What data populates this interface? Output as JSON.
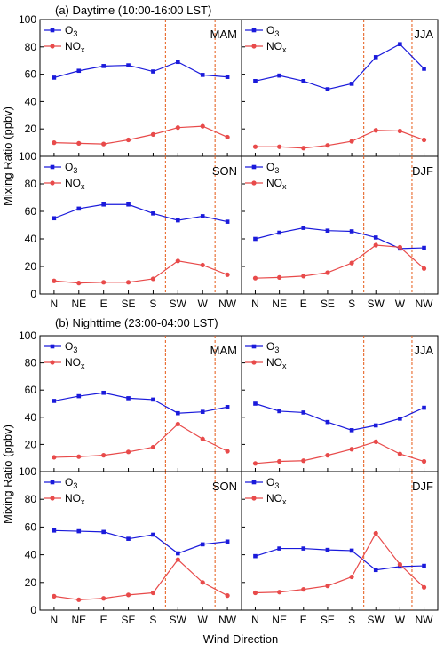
{
  "figure": {
    "section_a_title": "(a) Daytime (10:00-16:00 LST)",
    "section_b_title": "(b) Nighttime (23:00-04:00 LST)",
    "ylabel": "Mixing Ratio (ppbv)",
    "xlabel": "Wind Direction",
    "legend": {
      "o3": "O",
      "o3_sub": "3",
      "nox": "NO",
      "nox_sub": "x"
    },
    "colors": {
      "o3": "#1a1adb",
      "nox": "#e84a4a",
      "vline": "#e8682a"
    }
  },
  "chart_data": [
    {
      "type": "line",
      "section": "a",
      "season": "MAM",
      "categories": [
        "N",
        "NE",
        "E",
        "SE",
        "S",
        "SW",
        "W",
        "NW"
      ],
      "ylim": [
        0,
        100
      ],
      "yticks": [
        0,
        20,
        40,
        60,
        80,
        100
      ],
      "vlines": [
        "SW",
        "W"
      ],
      "series": [
        {
          "name": "O3",
          "values": [
            57.5,
            62.5,
            66,
            66.5,
            62,
            69,
            59.5,
            58
          ]
        },
        {
          "name": "NOx",
          "values": [
            10,
            9.5,
            9,
            12,
            16,
            21,
            22,
            14
          ]
        }
      ]
    },
    {
      "type": "line",
      "section": "a",
      "season": "JJA",
      "categories": [
        "N",
        "NE",
        "E",
        "SE",
        "S",
        "SW",
        "W",
        "NW"
      ],
      "ylim": [
        0,
        100
      ],
      "yticks": [
        0,
        20,
        40,
        60,
        80,
        100
      ],
      "vlines": [
        "SW",
        "W"
      ],
      "series": [
        {
          "name": "O3",
          "values": [
            55,
            59,
            55,
            49,
            53,
            72.5,
            82,
            64
          ]
        },
        {
          "name": "NOx",
          "values": [
            7,
            7,
            6,
            8,
            11,
            19,
            18.5,
            12
          ]
        }
      ]
    },
    {
      "type": "line",
      "section": "a",
      "season": "SON",
      "categories": [
        "N",
        "NE",
        "E",
        "SE",
        "S",
        "SW",
        "W",
        "NW"
      ],
      "ylim": [
        0,
        100
      ],
      "yticks": [
        0,
        20,
        40,
        60,
        80,
        100
      ],
      "vlines": [
        "SW",
        "W"
      ],
      "series": [
        {
          "name": "O3",
          "values": [
            55,
            62,
            65,
            65,
            58.5,
            53.5,
            56.5,
            52.5
          ]
        },
        {
          "name": "NOx",
          "values": [
            9.5,
            8,
            8.5,
            8.5,
            11,
            24,
            21,
            14
          ]
        }
      ]
    },
    {
      "type": "line",
      "section": "a",
      "season": "DJF",
      "categories": [
        "N",
        "NE",
        "E",
        "SE",
        "S",
        "SW",
        "W",
        "NW"
      ],
      "ylim": [
        0,
        100
      ],
      "yticks": [
        0,
        20,
        40,
        60,
        80,
        100
      ],
      "vlines": [
        "SW",
        "W"
      ],
      "series": [
        {
          "name": "O3",
          "values": [
            40,
            44.5,
            48,
            46,
            45.5,
            41,
            33,
            33.5
          ]
        },
        {
          "name": "NOx",
          "values": [
            11.5,
            12,
            13,
            15.5,
            22.5,
            35.5,
            34,
            18.5
          ]
        }
      ]
    },
    {
      "type": "line",
      "section": "b",
      "season": "MAM",
      "categories": [
        "N",
        "NE",
        "E",
        "SE",
        "S",
        "SW",
        "W",
        "NW"
      ],
      "ylim": [
        0,
        100
      ],
      "yticks": [
        0,
        20,
        40,
        60,
        80,
        100
      ],
      "vlines": [
        "SW",
        "W"
      ],
      "series": [
        {
          "name": "O3",
          "values": [
            52,
            55.5,
            58,
            54,
            53,
            43,
            44,
            47.5
          ]
        },
        {
          "name": "NOx",
          "values": [
            10.5,
            11,
            12,
            14.5,
            18,
            35,
            24,
            15
          ]
        }
      ]
    },
    {
      "type": "line",
      "section": "b",
      "season": "JJA",
      "categories": [
        "N",
        "NE",
        "E",
        "SE",
        "S",
        "SW",
        "W",
        "NW"
      ],
      "ylim": [
        0,
        100
      ],
      "yticks": [
        0,
        20,
        40,
        60,
        80,
        100
      ],
      "vlines": [
        "SW",
        "W"
      ],
      "series": [
        {
          "name": "O3",
          "values": [
            50,
            44.5,
            43.5,
            36.5,
            30.5,
            34,
            39,
            47
          ]
        },
        {
          "name": "NOx",
          "values": [
            6,
            7.5,
            8,
            12,
            16.5,
            22,
            13,
            7.5
          ]
        }
      ]
    },
    {
      "type": "line",
      "section": "b",
      "season": "SON",
      "categories": [
        "N",
        "NE",
        "E",
        "SE",
        "S",
        "SW",
        "W",
        "NW"
      ],
      "ylim": [
        0,
        100
      ],
      "yticks": [
        0,
        20,
        40,
        60,
        80,
        100
      ],
      "vlines": [
        "SW",
        "W"
      ],
      "series": [
        {
          "name": "O3",
          "values": [
            57.5,
            57,
            56.5,
            51.5,
            54.5,
            41,
            47.5,
            49.5
          ]
        },
        {
          "name": "NOx",
          "values": [
            10,
            7.5,
            8.5,
            11,
            12.5,
            36.5,
            20,
            10.5
          ]
        }
      ]
    },
    {
      "type": "line",
      "section": "b",
      "season": "DJF",
      "categories": [
        "N",
        "NE",
        "E",
        "SE",
        "S",
        "SW",
        "W",
        "NW"
      ],
      "ylim": [
        0,
        100
      ],
      "yticks": [
        0,
        20,
        40,
        60,
        80,
        100
      ],
      "vlines": [
        "SW",
        "W"
      ],
      "series": [
        {
          "name": "O3",
          "values": [
            39,
            44.5,
            44.5,
            43.5,
            43,
            29,
            31.5,
            32
          ]
        },
        {
          "name": "NOx",
          "values": [
            12.5,
            13,
            15,
            17.5,
            24,
            55.5,
            33,
            16.5
          ]
        }
      ]
    }
  ]
}
